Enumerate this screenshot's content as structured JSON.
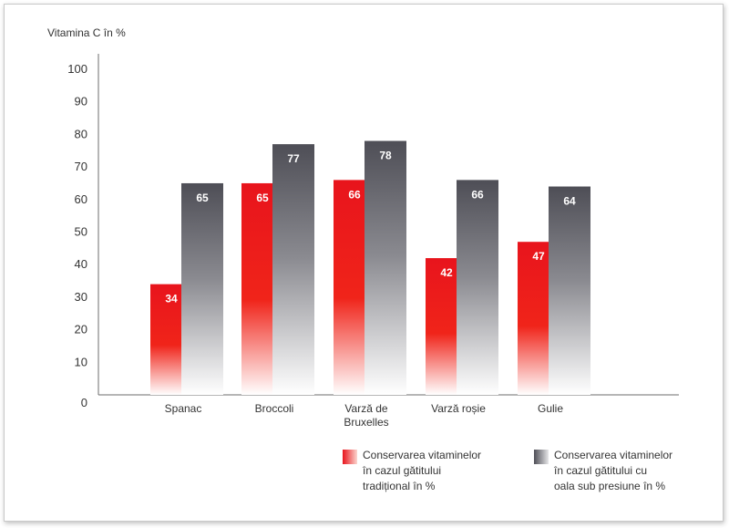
{
  "chart_data": {
    "type": "bar",
    "ylabel": "Vitamina C în %",
    "ylim": [
      0,
      100
    ],
    "yticks": [
      0,
      10,
      20,
      30,
      40,
      50,
      60,
      70,
      80,
      90,
      100
    ],
    "grid": false,
    "legend_position": "bottom-right",
    "categories": [
      [
        "Spanac"
      ],
      [
        "Broccoli"
      ],
      [
        "Varză de",
        "Bruxelles"
      ],
      [
        "Varză roșie"
      ],
      [
        "Gulie"
      ]
    ],
    "series": [
      {
        "name": [
          "Conservarea vitaminelor",
          "în cazul gătitului",
          "tradițional în %"
        ],
        "values": [
          34,
          65,
          66,
          42,
          47
        ],
        "color": "#e8141c"
      },
      {
        "name": [
          "Conservarea vitaminelor",
          "în cazul gătitului cu",
          "oala sub presiune în %"
        ],
        "values": [
          65,
          77,
          78,
          66,
          64
        ],
        "color": "#55555d"
      }
    ]
  }
}
